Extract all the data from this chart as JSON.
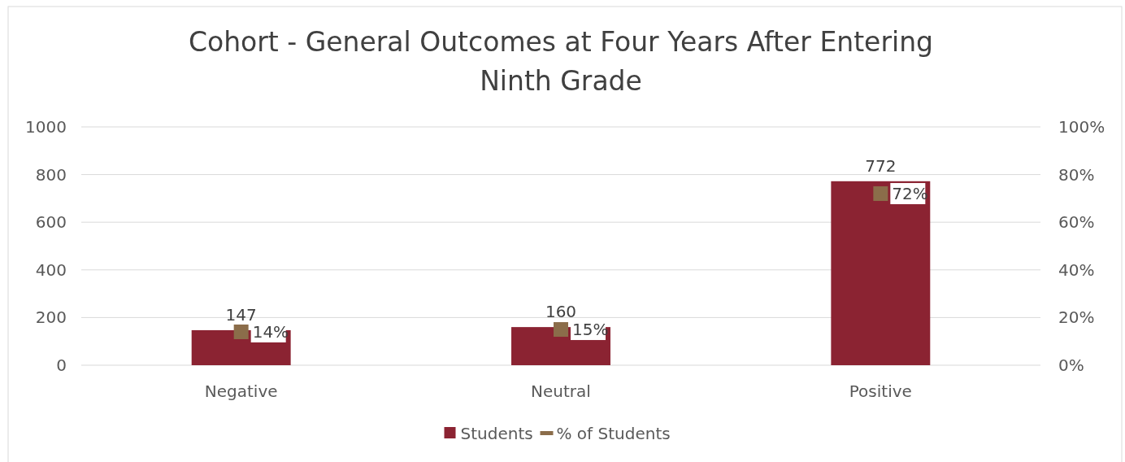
{
  "chart_data": {
    "type": "bar",
    "title": "Cohort - General Outcomes at Four Years After Entering Ninth Grade",
    "categories": [
      "Negative",
      "Neutral",
      "Positive"
    ],
    "series": [
      {
        "name": "Students",
        "type": "bar",
        "color": "#8b2332",
        "values": [
          147,
          160,
          772
        ],
        "value_labels": [
          "147",
          "160",
          "772"
        ]
      },
      {
        "name": "% of Students",
        "type": "scatter",
        "axis": "y2",
        "marker": "square",
        "color": "#8b6d4a",
        "values": [
          14,
          15,
          72
        ],
        "value_labels": [
          "14%",
          "15%",
          "72%"
        ]
      }
    ],
    "ylim": [
      0,
      1000
    ],
    "yticks": [
      0,
      200,
      400,
      600,
      800,
      1000
    ],
    "y2lim": [
      0,
      100
    ],
    "y2ticks": [
      {
        "value": 0,
        "label": "0%"
      },
      {
        "value": 20,
        "label": "20%"
      },
      {
        "value": 40,
        "label": "40%"
      },
      {
        "value": 60,
        "label": "60%"
      },
      {
        "value": 80,
        "label": "80%"
      },
      {
        "value": 100,
        "label": "100%"
      }
    ],
    "grid": "y",
    "legend": "bottom"
  }
}
